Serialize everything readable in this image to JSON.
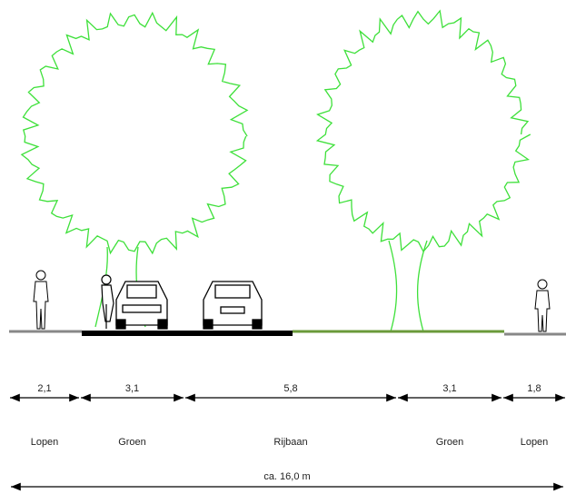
{
  "segments": [
    {
      "width": "2,1",
      "name": "Lopen"
    },
    {
      "width": "3,1",
      "name": "Groen"
    },
    {
      "width": "5,8",
      "name": "Rijbaan"
    },
    {
      "width": "3,1",
      "name": "Groen"
    },
    {
      "width": "1,8",
      "name": "Lopen"
    }
  ],
  "total": "ca. 16,0 m"
}
